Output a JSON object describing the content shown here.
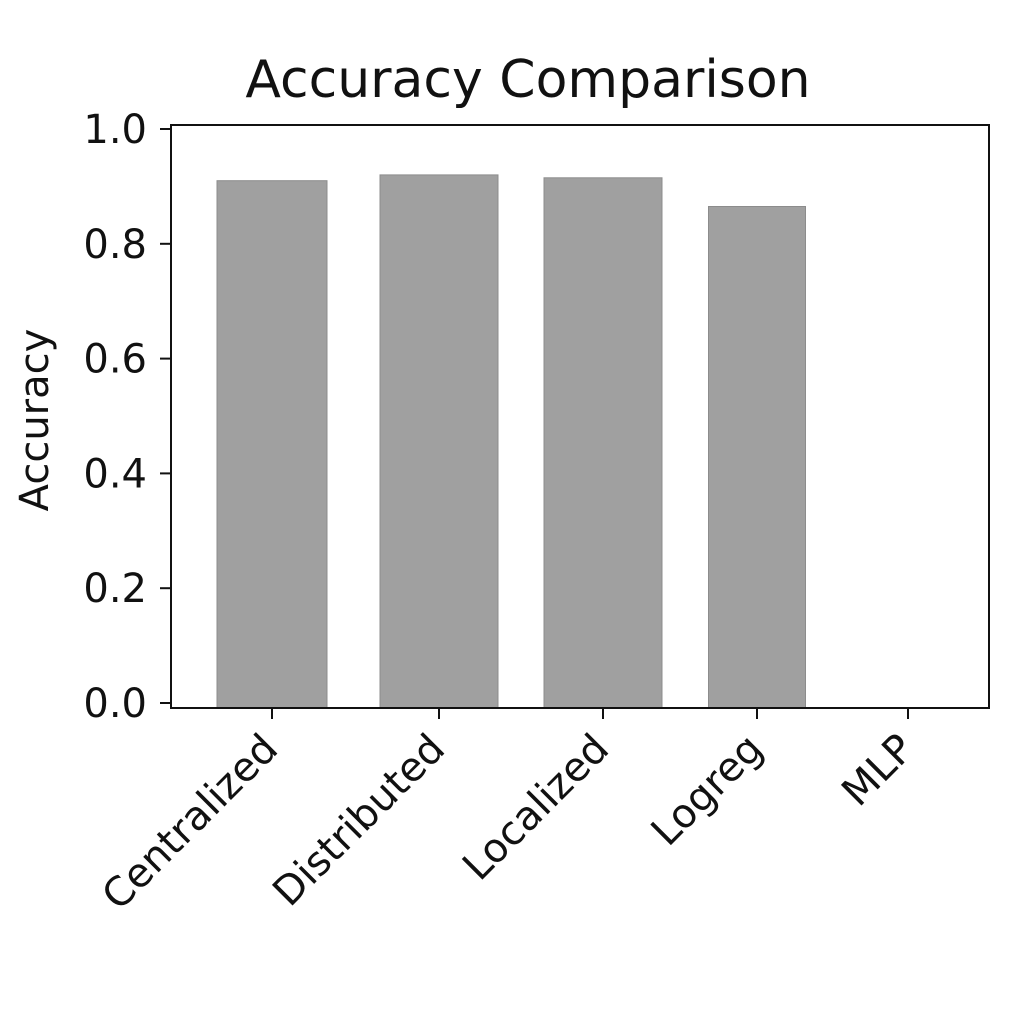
{
  "chart_data": {
    "type": "bar",
    "title": "Accuracy Comparison",
    "xlabel": "",
    "ylabel": "Accuracy",
    "categories": [
      "Centralized",
      "Distributed",
      "Localized",
      "Logreg",
      "MLP"
    ],
    "values": [
      0.91,
      0.92,
      0.915,
      0.865,
      0
    ],
    "ylim": [
      0,
      1.0
    ],
    "yticks": [
      0.0,
      0.2,
      0.4,
      0.6,
      0.8,
      1.0
    ],
    "ytick_labels": [
      "0.0",
      "0.2",
      "0.4",
      "0.6",
      "0.8",
      "1.0"
    ],
    "bar_color": "#a0a0a0",
    "grid": false,
    "legend": "none"
  }
}
